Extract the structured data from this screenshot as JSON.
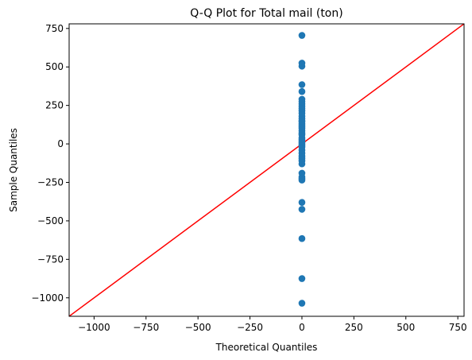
{
  "chart_data": {
    "type": "scatter",
    "title": "Q-Q Plot for Total mail (ton)",
    "xlabel": "Theoretical Quantiles",
    "ylabel": "Sample Quantiles",
    "xlim": [
      -1120,
      780
    ],
    "ylim": [
      -1120,
      780
    ],
    "xticks": [
      -1000,
      -750,
      -500,
      -250,
      0,
      250,
      500,
      750
    ],
    "xtick_labels": [
      "−1000",
      "−750",
      "−500",
      "−250",
      "0",
      "250",
      "500",
      "750"
    ],
    "yticks": [
      -1000,
      -750,
      -500,
      -250,
      0,
      250,
      500,
      750
    ],
    "ytick_labels": [
      "−1000",
      "−750",
      "−500",
      "−250",
      "0",
      "250",
      "500",
      "750"
    ],
    "grid": false,
    "point_color": "#1f77b4",
    "line_color": "#ff0000",
    "reference_line": {
      "x": [
        -1120,
        780
      ],
      "y": [
        -1120,
        780
      ]
    },
    "points": {
      "x": [
        0,
        0,
        0,
        0,
        0,
        0,
        0,
        0,
        0,
        0,
        0,
        0,
        0,
        0,
        0,
        0,
        0,
        0,
        0,
        0,
        0,
        0,
        0,
        0,
        0,
        0,
        0,
        0,
        0,
        0,
        0,
        0,
        0,
        0,
        0,
        0,
        0,
        0,
        0,
        0,
        0,
        0,
        0,
        0,
        0
      ],
      "y": [
        -1035,
        -875,
        -615,
        -425,
        -380,
        -235,
        -225,
        -215,
        -190,
        -130,
        -110,
        -95,
        -80,
        -60,
        -40,
        -20,
        -10,
        0,
        10,
        20,
        30,
        40,
        60,
        85,
        100,
        110,
        120,
        130,
        145,
        165,
        180,
        200,
        215,
        230,
        245,
        260,
        275,
        290,
        340,
        385,
        505,
        525,
        705,
        150,
        70
      ]
    }
  }
}
